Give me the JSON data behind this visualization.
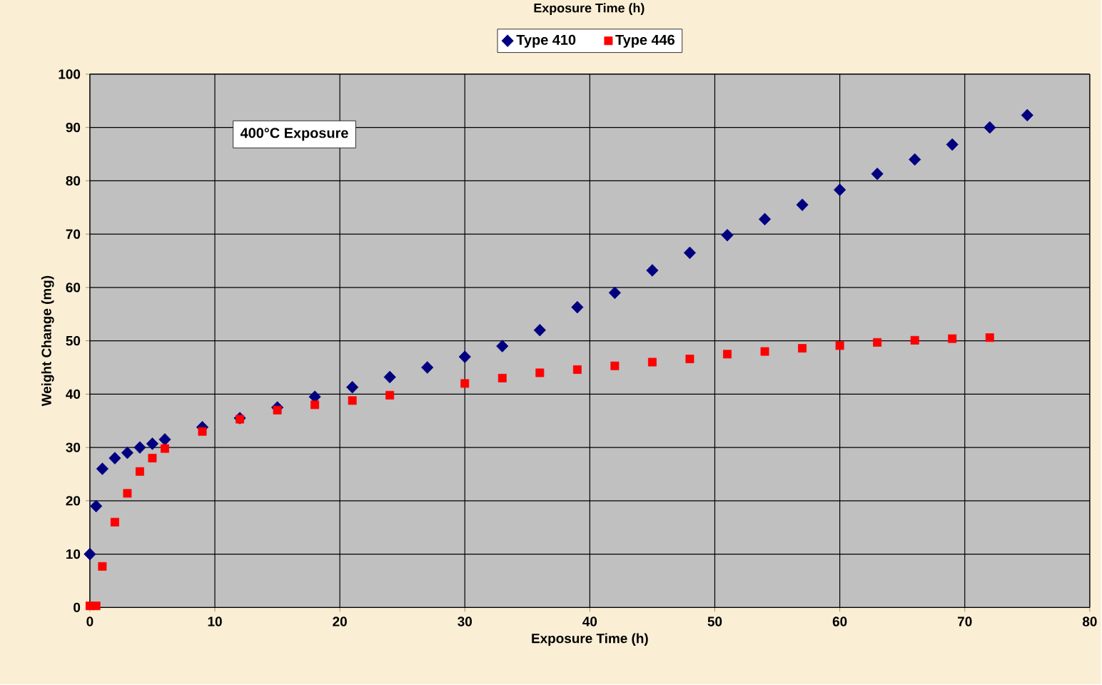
{
  "chart_data": {
    "type": "scatter",
    "title": "Exposure Time (h)",
    "xlabel": "Exposure Time (h)",
    "ylabel": "Weight Change (mg)",
    "annotations": [
      "400°C Exposure"
    ],
    "xlim": [
      0,
      80
    ],
    "xticks": [
      0,
      10,
      20,
      30,
      40,
      50,
      60,
      70,
      80
    ],
    "ylim": [
      0,
      100
    ],
    "yticks": [
      0,
      10,
      20,
      30,
      40,
      50,
      60,
      70,
      80,
      90,
      100
    ],
    "grid": true,
    "legend": "top",
    "series": [
      {
        "name": "Type 410",
        "color": "#000080",
        "marker": "diamond",
        "x": [
          0,
          0.5,
          1,
          2,
          3,
          4,
          5,
          6,
          9,
          12,
          15,
          18,
          21,
          24,
          27,
          30,
          33,
          36,
          39,
          42,
          45,
          48,
          51,
          54,
          57,
          60,
          63,
          66,
          69,
          72,
          75
        ],
        "values": [
          10,
          19,
          26,
          28,
          29,
          30,
          30.7,
          31.5,
          33.8,
          35.5,
          37.5,
          39.5,
          41.3,
          43.2,
          45,
          47,
          49,
          52,
          56.3,
          59,
          63.2,
          66.5,
          69.8,
          72.8,
          75.5,
          78.3,
          81.3,
          84,
          86.8,
          90,
          92.3
        ]
      },
      {
        "name": "Type 446",
        "color": "#ff0000",
        "marker": "square",
        "x": [
          0,
          0.5,
          1,
          2,
          3,
          4,
          5,
          6,
          9,
          12,
          15,
          18,
          21,
          24,
          30,
          33,
          36,
          39,
          42,
          45,
          48,
          51,
          54,
          57,
          60,
          63,
          66,
          69,
          72
        ],
        "values": [
          0.3,
          0.3,
          7.7,
          16,
          21.4,
          25.5,
          28,
          29.8,
          33,
          35.3,
          37,
          38,
          38.8,
          39.8,
          42,
          43,
          44,
          44.6,
          45.3,
          46,
          46.6,
          47.5,
          48,
          48.6,
          49.1,
          49.7,
          50.1,
          50.4,
          50.6
        ]
      }
    ]
  }
}
